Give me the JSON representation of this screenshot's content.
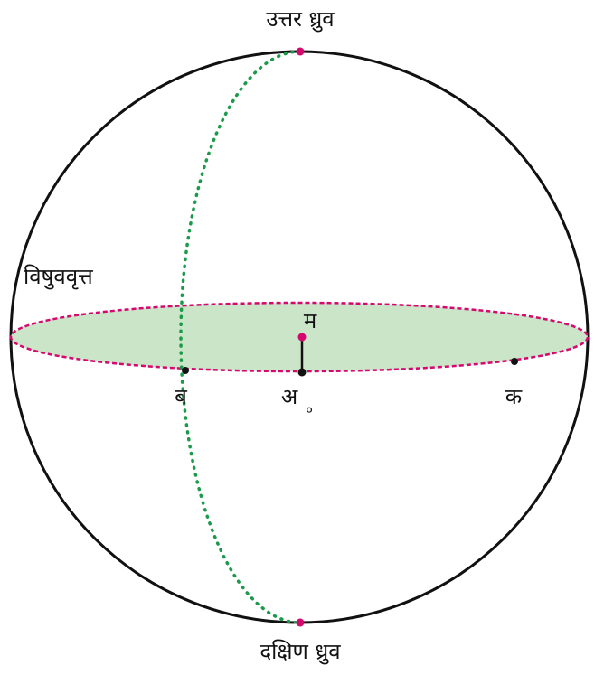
{
  "labels": {
    "north_pole": "उत्तर ध्रुव",
    "south_pole": "दक्षिण ध्रुव",
    "equator": "विषुववृत्त",
    "center_m": "म",
    "point_b": "ब",
    "point_a": "अ",
    "degree": "०",
    "point_k": "क"
  }
}
